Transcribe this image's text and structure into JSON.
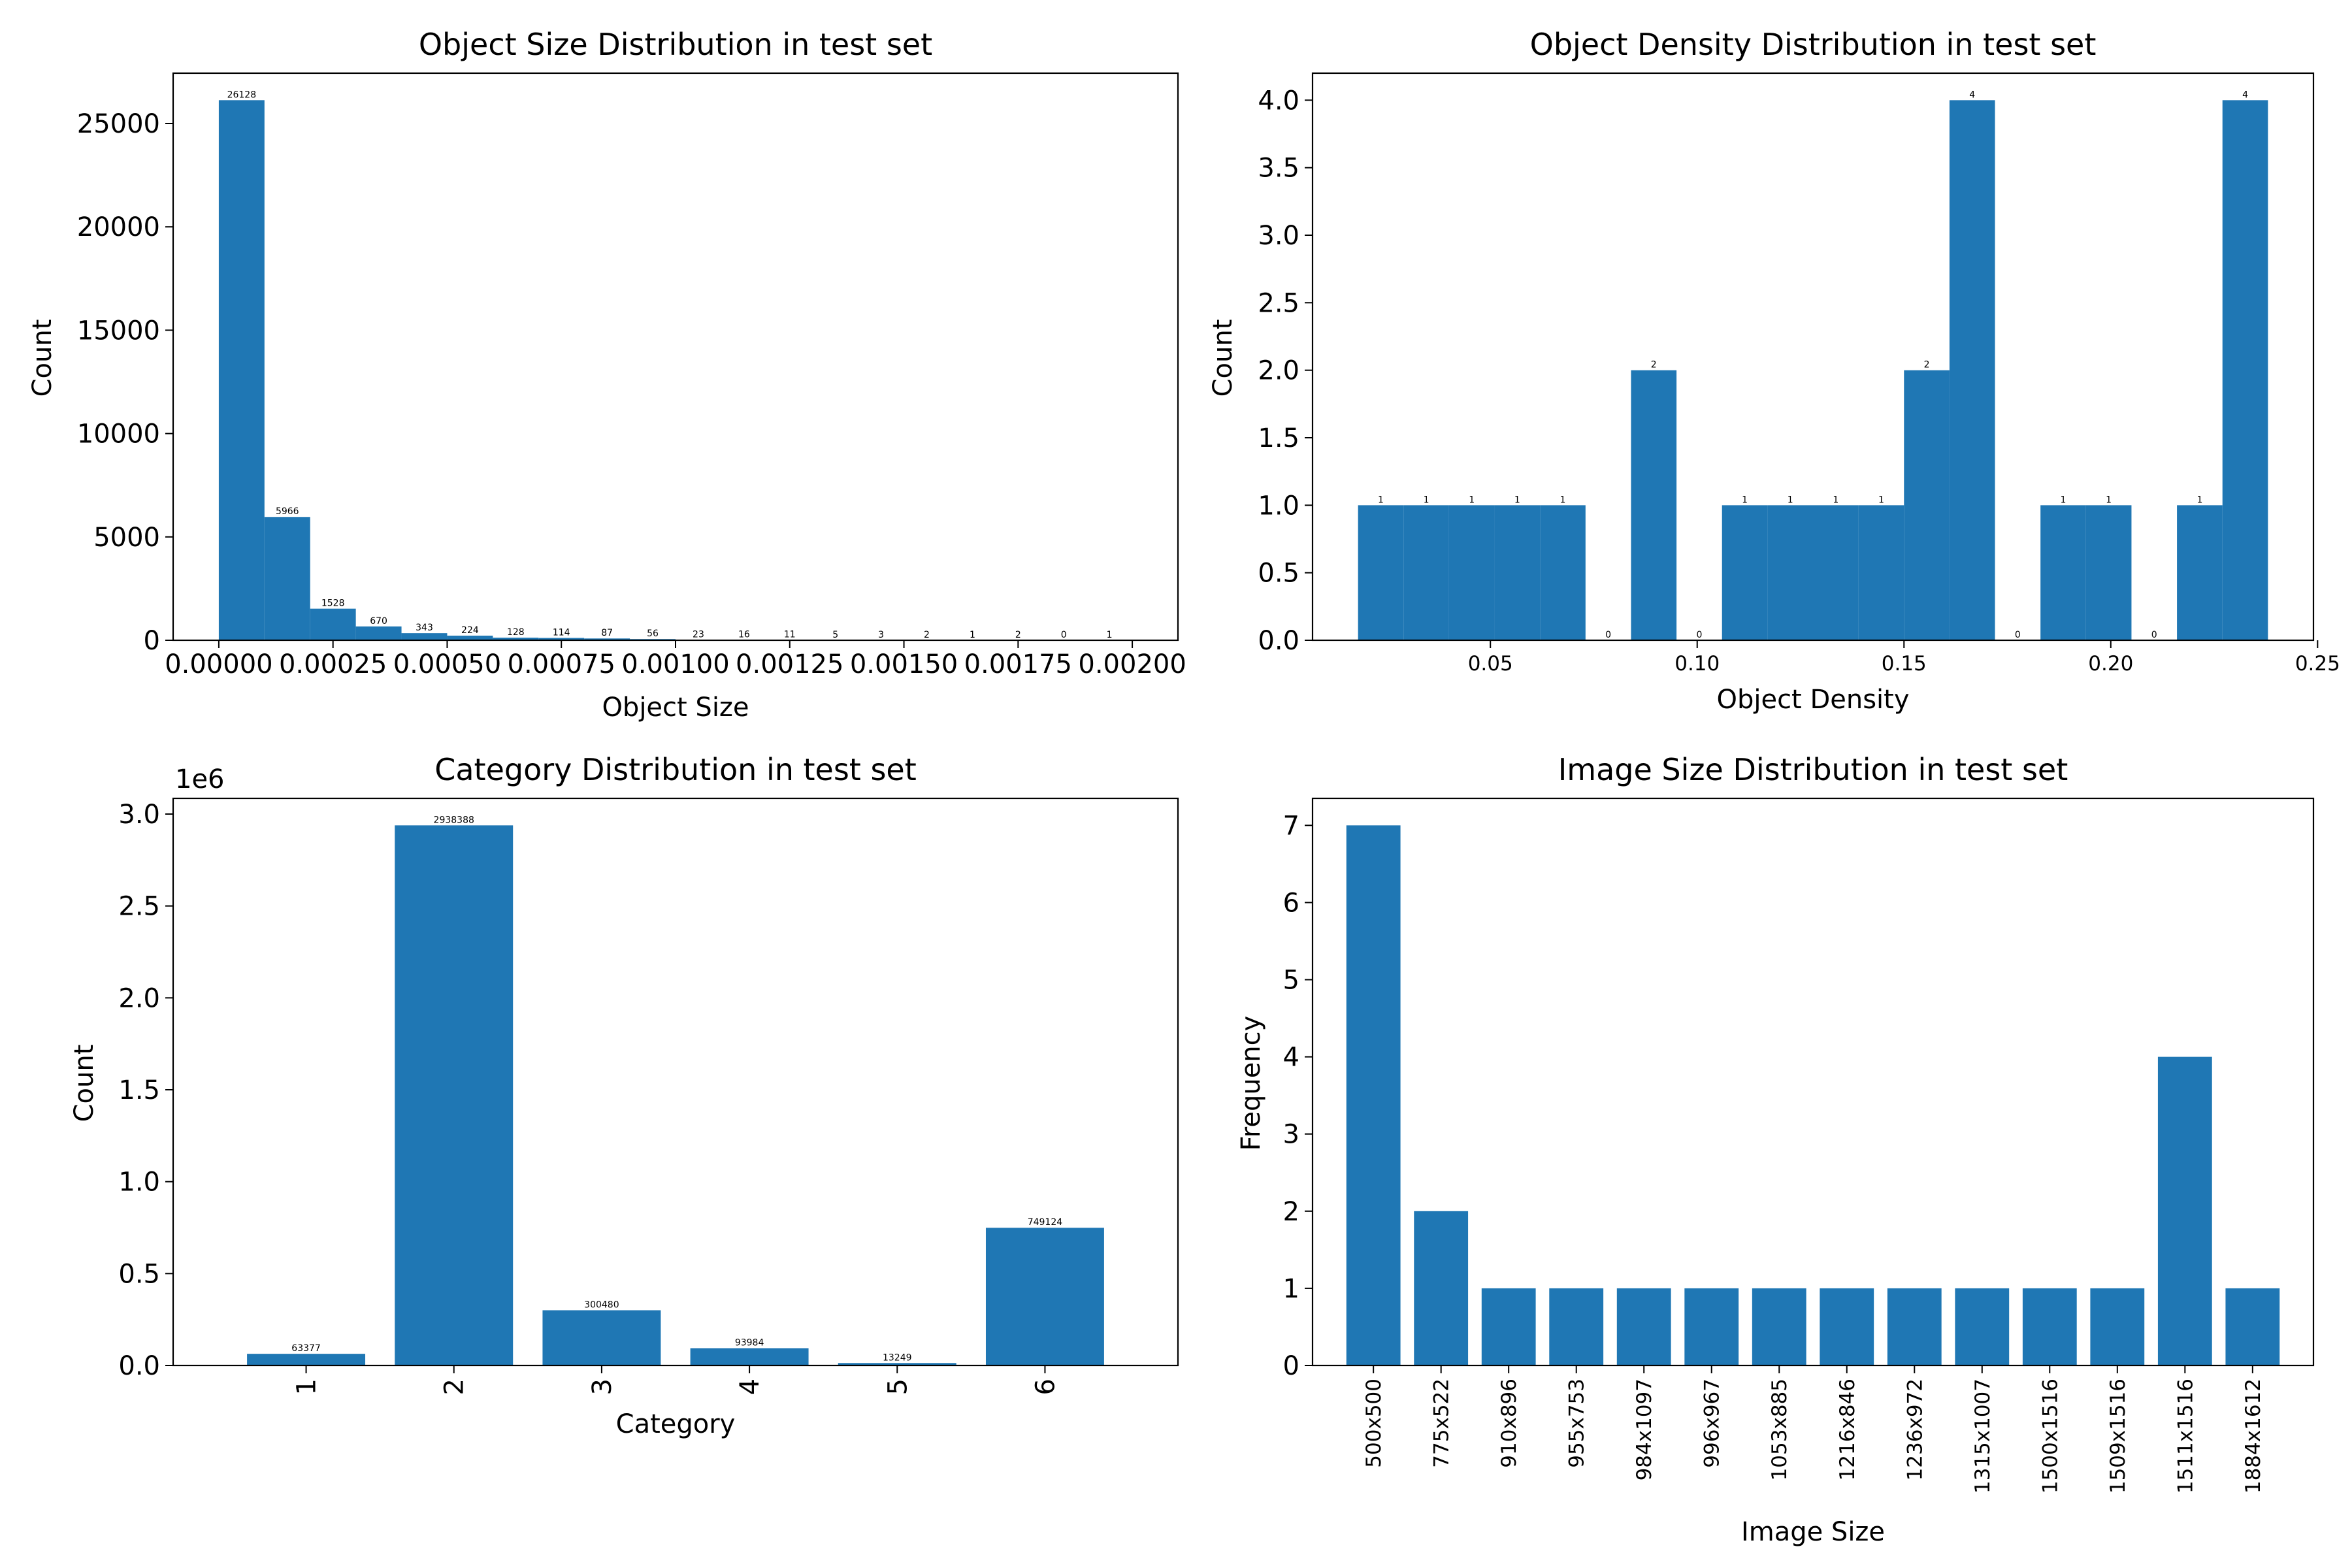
{
  "style": {
    "bar_color": "#1f77b4"
  },
  "chart_data": [
    {
      "type": "bar",
      "title": "Object Size Distribution in test set",
      "xlabel": "Object Size",
      "ylabel": "Count",
      "bin_edges": [
        0.0,
        0.0001,
        0.0002,
        0.0003,
        0.0004,
        0.0005,
        0.0006,
        0.0007,
        0.0008,
        0.0009,
        0.001,
        0.0011,
        0.0012,
        0.0013,
        0.0014,
        0.0015,
        0.0016,
        0.0017,
        0.0018,
        0.0019,
        0.002
      ],
      "values": [
        26128,
        5966,
        1528,
        670,
        343,
        224,
        128,
        114,
        87,
        56,
        23,
        16,
        11,
        5,
        3,
        2,
        1,
        2,
        0,
        1
      ],
      "data_labels": [
        "26128",
        "5966",
        "1528",
        "670",
        "343",
        "224",
        "128",
        "114",
        "87",
        "56",
        "23",
        "16",
        "11",
        "5",
        "3",
        "2",
        "1",
        "2",
        "0",
        "1"
      ],
      "xlim": [
        -0.0001,
        0.0021
      ],
      "ylim": [
        0,
        27434
      ],
      "xticks": [
        0.0,
        0.00025,
        0.0005,
        0.00075,
        0.001,
        0.00125,
        0.0015,
        0.00175,
        0.002
      ],
      "xtick_labels": [
        "0.00000",
        "0.00025",
        "0.00050",
        "0.00075",
        "0.00100",
        "0.00125",
        "0.00150",
        "0.00175",
        "0.00200"
      ],
      "yticks": [
        0,
        5000,
        10000,
        15000,
        20000,
        25000
      ],
      "ytick_labels": [
        "0",
        "5000",
        "10000",
        "15000",
        "20000",
        "25000"
      ],
      "grid": false
    },
    {
      "type": "bar",
      "title": "Object Density Distribution in test set",
      "xlabel": "Object Density",
      "ylabel": "Count",
      "bin_edges": [
        0.018,
        0.029,
        0.04,
        0.051,
        0.062,
        0.073,
        0.084,
        0.095,
        0.106,
        0.117,
        0.128,
        0.139,
        0.15,
        0.161,
        0.172,
        0.183,
        0.194,
        0.205,
        0.216,
        0.227,
        0.238
      ],
      "values": [
        1,
        1,
        1,
        1,
        1,
        0,
        2,
        0,
        1,
        1,
        1,
        1,
        2,
        4,
        0,
        1,
        1,
        0,
        1,
        4
      ],
      "data_labels": [
        "1",
        "1",
        "1",
        "1",
        "1",
        "0",
        "2",
        "0",
        "1",
        "1",
        "1",
        "1",
        "2",
        "4",
        "0",
        "1",
        "1",
        "0",
        "1",
        "4"
      ],
      "xlim": [
        0.007,
        0.249
      ],
      "ylim": [
        0,
        4.2
      ],
      "xticks": [
        0.05,
        0.1,
        0.15,
        0.2,
        0.25
      ],
      "xtick_labels": [
        "0.05",
        "0.10",
        "0.15",
        "0.20",
        "0.25"
      ],
      "yticks": [
        0.0,
        0.5,
        1.0,
        1.5,
        2.0,
        2.5,
        3.0,
        3.5,
        4.0
      ],
      "ytick_labels": [
        "0.0",
        "0.5",
        "1.0",
        "1.5",
        "2.0",
        "2.5",
        "3.0",
        "3.5",
        "4.0"
      ],
      "grid": false
    },
    {
      "type": "bar",
      "title": "Category Distribution in test set",
      "xlabel": "Category",
      "ylabel": "Count",
      "categories": [
        "1",
        "2",
        "3",
        "4",
        "5",
        "6"
      ],
      "values": [
        63377,
        2938388,
        300480,
        93984,
        13249,
        749124
      ],
      "data_labels": [
        "63377",
        "2938388",
        "300480",
        "93984",
        "13249",
        "749124"
      ],
      "ylim": [
        0,
        3085307
      ],
      "yticks": [
        0,
        500000,
        1000000,
        1500000,
        2000000,
        2500000,
        3000000
      ],
      "ytick_labels": [
        "0.0",
        "0.5",
        "1.0",
        "1.5",
        "2.0",
        "2.5",
        "3.0"
      ],
      "y_offset_label": "1e6",
      "xtick_rotation": 90,
      "grid": false
    },
    {
      "type": "bar",
      "title": "Image Size Distribution in test set",
      "xlabel": "Image Size",
      "ylabel": "Frequency",
      "categories": [
        "500x500",
        "775x522",
        "910x896",
        "955x753",
        "984x1097",
        "996x967",
        "1053x885",
        "1216x846",
        "1236x972",
        "1315x1007",
        "1500x1516",
        "1509x1516",
        "1511x1516",
        "1884x1612"
      ],
      "values": [
        7,
        2,
        1,
        1,
        1,
        1,
        1,
        1,
        1,
        1,
        1,
        1,
        4,
        1
      ],
      "ylim": [
        0,
        7.35
      ],
      "yticks": [
        0,
        1,
        2,
        3,
        4,
        5,
        6,
        7
      ],
      "ytick_labels": [
        "0",
        "1",
        "2",
        "3",
        "4",
        "5",
        "6",
        "7"
      ],
      "xtick_rotation": 90,
      "grid": false
    }
  ]
}
